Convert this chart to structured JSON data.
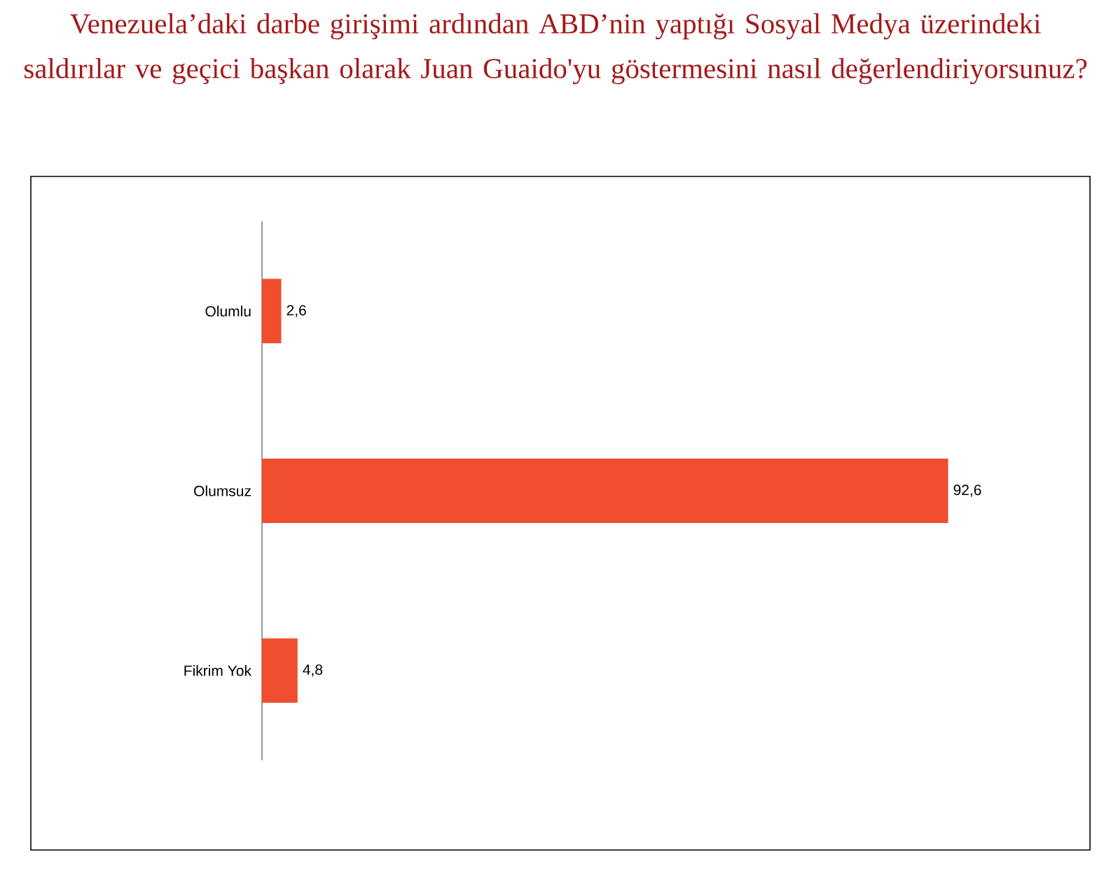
{
  "chart_data": {
    "type": "bar",
    "orientation": "horizontal",
    "title": "Venezuela’daki darbe girişimi ardından ABD’nin yaptığı Sosyal Medya üzerindeki saldırılar ve geçici başkan olarak Juan Guaido'yu göstermesini nasıl değerlendiriyorsunuz?",
    "categories": [
      "Olumlu",
      "Olumsuz",
      "Fikrim Yok"
    ],
    "values": [
      2.6,
      92.6,
      4.8
    ],
    "value_labels": [
      "2,6",
      "92,6",
      "4,8"
    ],
    "color": "#f04e2f"
  }
}
